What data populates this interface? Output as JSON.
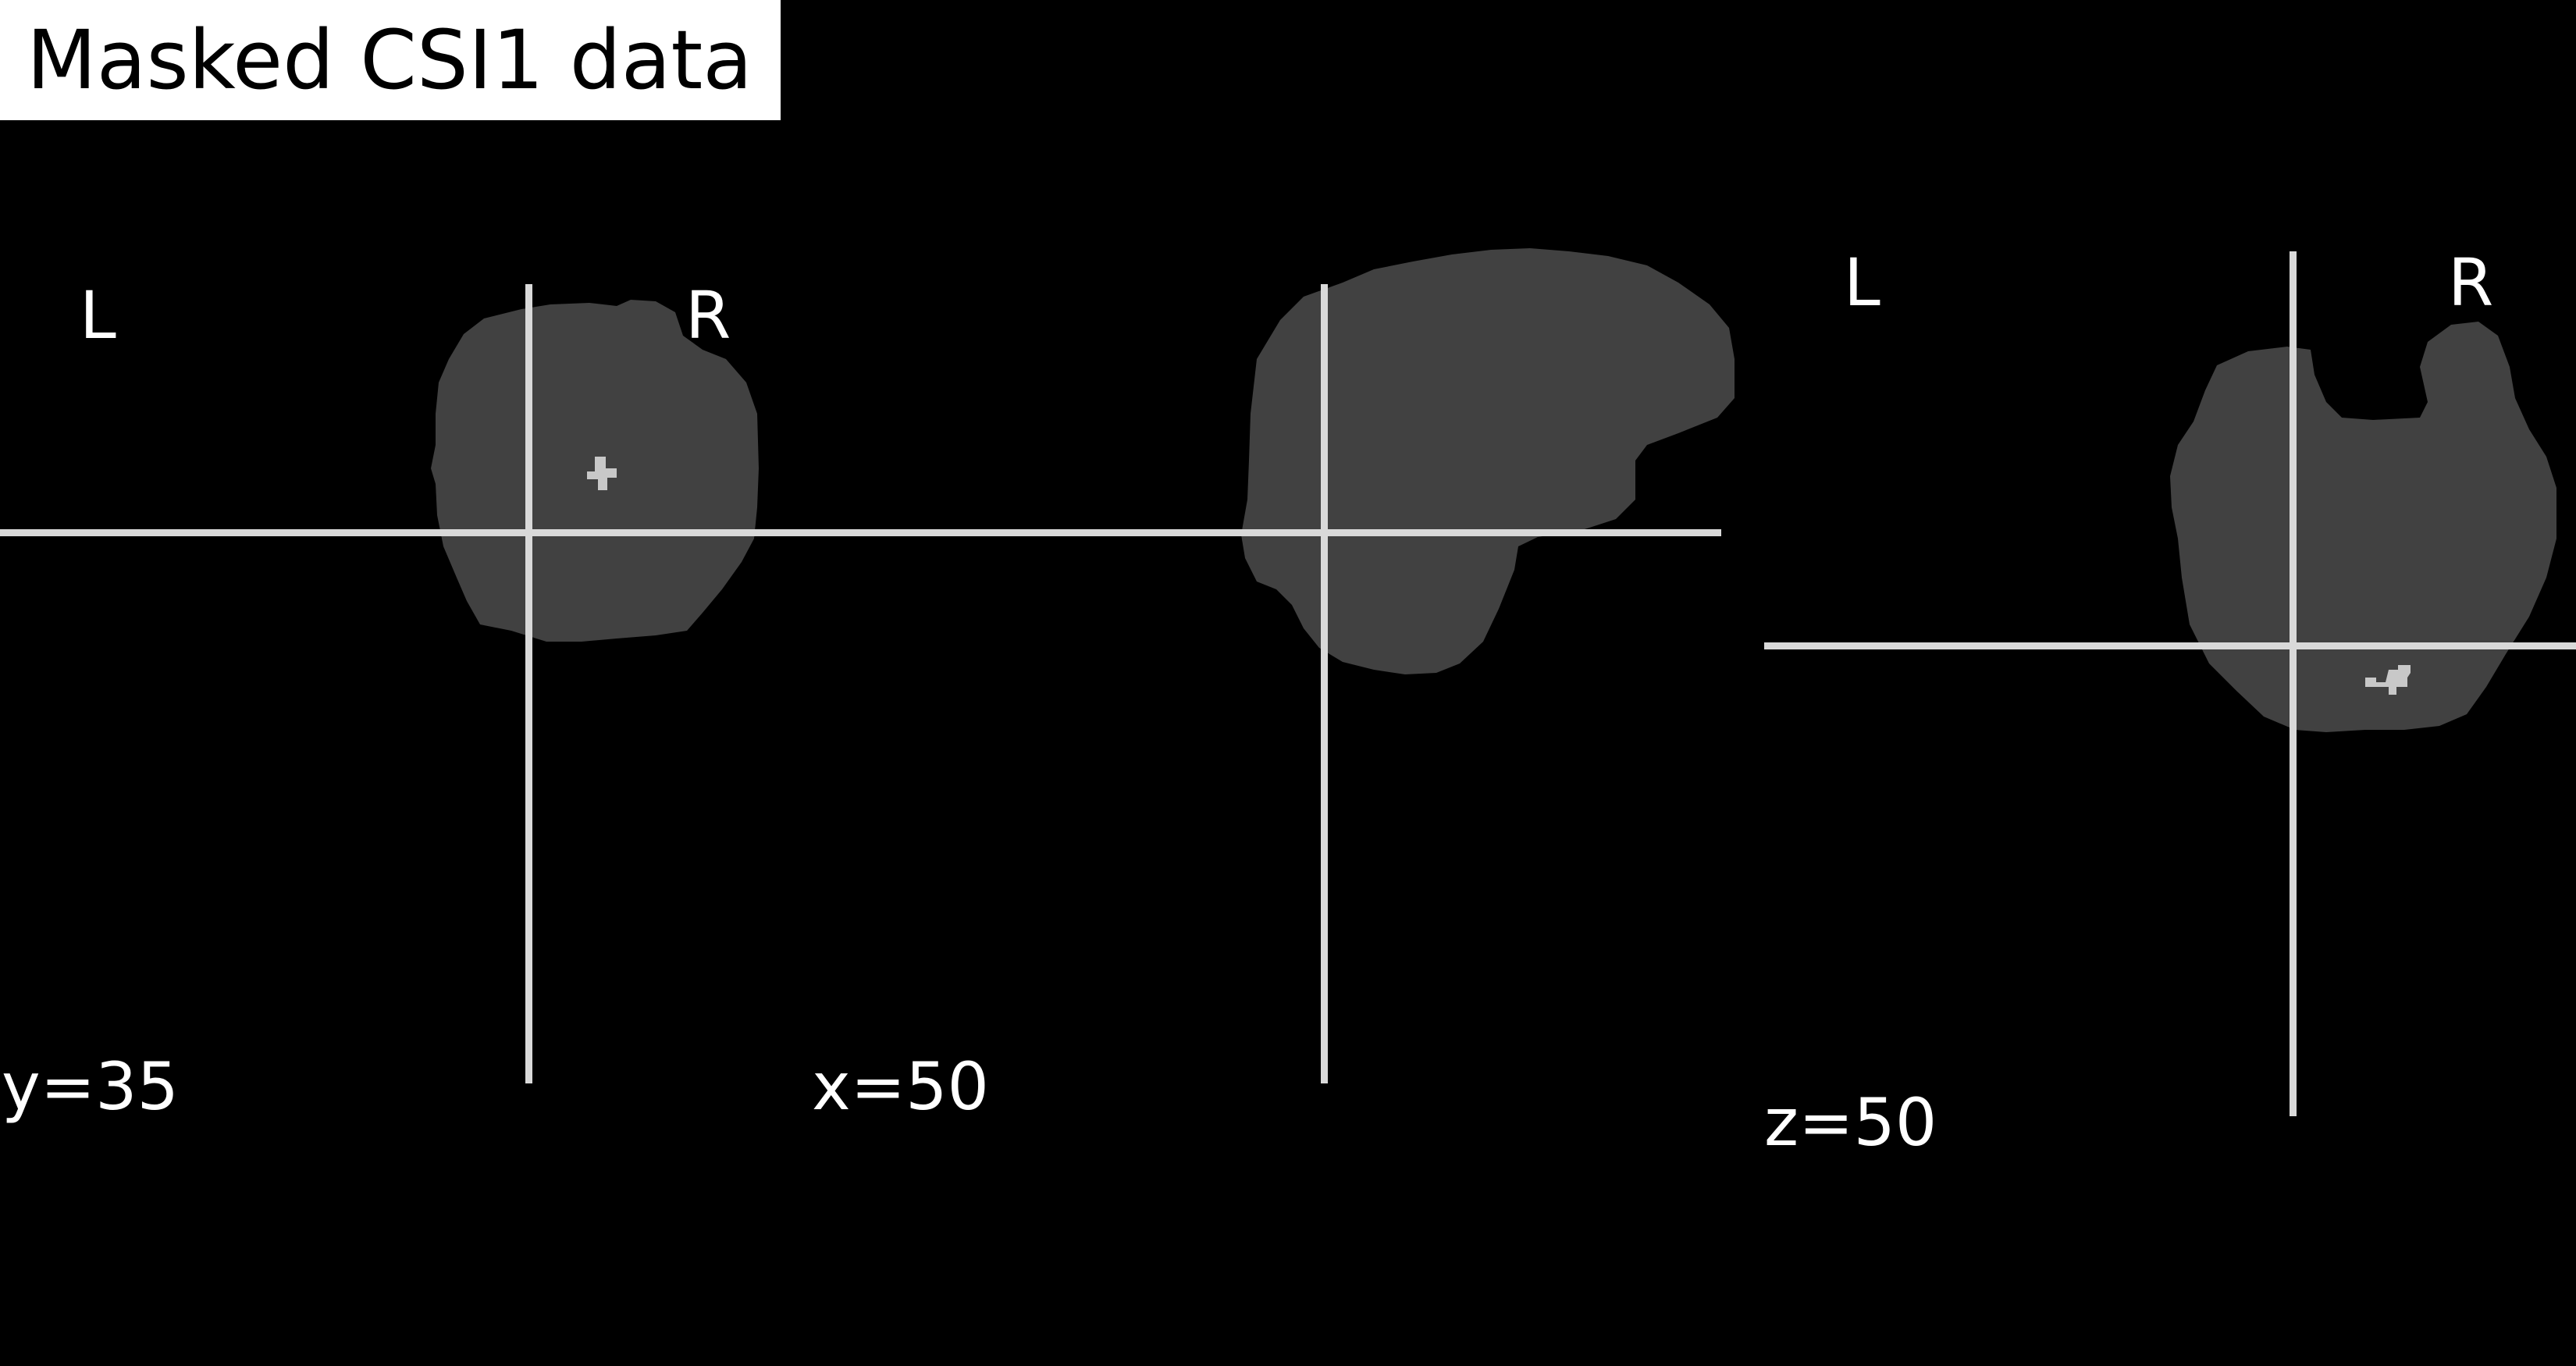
{
  "title": "Masked CSI1 data",
  "colors": {
    "background": "#000000",
    "brain_mask": "#414141",
    "roi": "#c8c8c8",
    "crosshair": "#d9d9d9",
    "text": "#ffffff",
    "title_background": "#ffffff",
    "title_text": "#000000"
  },
  "views": {
    "coronal": {
      "left_label": "L",
      "right_label": "R",
      "coord_label": "y=35"
    },
    "sagittal": {
      "coord_label": "x=50"
    },
    "axial": {
      "left_label": "L",
      "right_label": "R",
      "coord_label": "z=50"
    }
  }
}
